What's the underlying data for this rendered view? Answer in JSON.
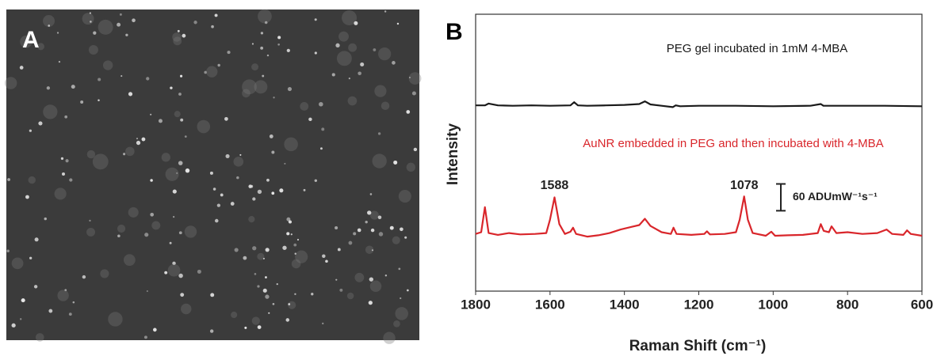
{
  "panels": {
    "a_label": "A"
  },
  "chart_data": {
    "type": "line",
    "panel_label": "B",
    "xlabel": "Raman Shift (cm⁻¹)",
    "ylabel": "Intensity",
    "xlim": [
      1800,
      600
    ],
    "ylim": [
      0,
      620
    ],
    "xticks": [
      1800,
      1600,
      1400,
      1200,
      1000,
      800,
      600
    ],
    "series": [
      {
        "name": "PEG gel incubated in 1mM 4-MBA",
        "color": "#1a1a1a",
        "x": [
          1800,
          1775,
          1765,
          1740,
          1700,
          1650,
          1600,
          1545,
          1535,
          1525,
          1500,
          1450,
          1400,
          1360,
          1345,
          1330,
          1300,
          1270,
          1262,
          1250,
          1200,
          1100,
          1000,
          900,
          872,
          865,
          800,
          700,
          600
        ],
        "values": [
          416,
          416,
          420,
          416,
          415,
          416,
          415,
          416,
          423,
          416,
          415,
          416,
          417,
          419,
          425,
          418,
          415,
          412,
          416,
          414,
          415,
          415,
          414,
          415,
          419,
          415,
          415,
          415,
          414
        ]
      },
      {
        "name": "AuNR embedded in PEG and then incubated with 4-MBA",
        "color": "#d9262b",
        "x": [
          1800,
          1785,
          1775,
          1765,
          1740,
          1710,
          1680,
          1640,
          1610,
          1600,
          1588,
          1575,
          1560,
          1545,
          1538,
          1530,
          1500,
          1470,
          1440,
          1410,
          1380,
          1360,
          1345,
          1330,
          1300,
          1275,
          1268,
          1260,
          1220,
          1185,
          1178,
          1170,
          1130,
          1100,
          1090,
          1078,
          1068,
          1055,
          1020,
          1005,
          995,
          960,
          920,
          880,
          872,
          864,
          850,
          843,
          830,
          800,
          760,
          720,
          695,
          680,
          650,
          640,
          630,
          600
        ],
        "values": [
          128,
          132,
          188,
          130,
          126,
          130,
          127,
          128,
          130,
          160,
          210,
          150,
          128,
          133,
          142,
          128,
          122,
          125,
          130,
          138,
          144,
          148,
          162,
          146,
          132,
          128,
          142,
          128,
          126,
          128,
          134,
          127,
          128,
          132,
          160,
          212,
          160,
          130,
          124,
          133,
          124,
          125,
          126,
          130,
          150,
          135,
          132,
          145,
          130,
          132,
          128,
          130,
          138,
          128,
          126,
          136,
          128,
          124
        ]
      }
    ],
    "peak_labels": [
      1588,
      1078
    ],
    "scale_bar": {
      "value": 60,
      "label": "60 ADUmW⁻¹s⁻¹"
    }
  }
}
